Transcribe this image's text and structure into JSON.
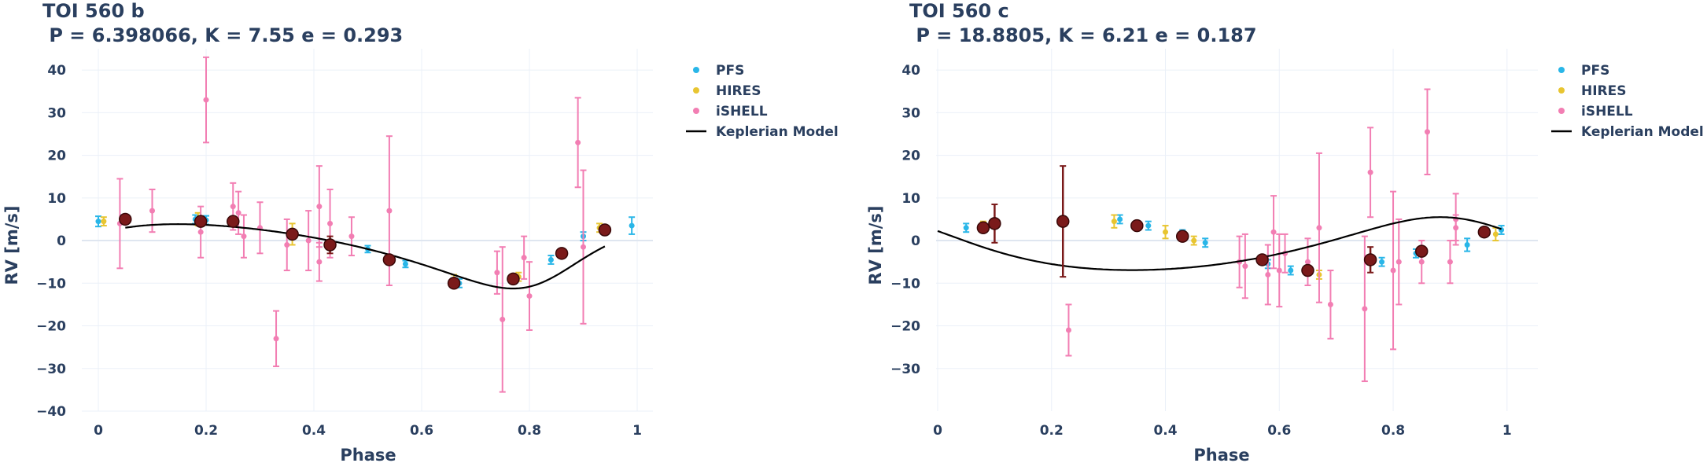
{
  "chart_data": [
    {
      "type": "scatter",
      "title": "TOI 560 b",
      "subtitle": " P = 6.398066, K = 7.55 e = 0.293",
      "xlabel": "Phase",
      "ylabel": "RV [m/s]",
      "xlim": [
        0,
        1
      ],
      "ylim": [
        -40,
        45
      ],
      "xticks": [
        0,
        0.2,
        0.4,
        0.6,
        0.8,
        1
      ],
      "xticklabels": [
        "0",
        "0.2",
        "0.4",
        "0.6",
        "0.8",
        "1"
      ],
      "yticks": [
        -40,
        -30,
        -20,
        -10,
        0,
        10,
        20,
        30,
        40
      ],
      "yticklabels": [
        "−40",
        "−30",
        "−20",
        "−10",
        "0",
        "10",
        "20",
        "30",
        "40"
      ],
      "grid": true,
      "legend": [
        {
          "name": "PFS",
          "color": "#29b6e8",
          "kind": "marker"
        },
        {
          "name": "HIRES",
          "color": "#e8c531",
          "kind": "marker"
        },
        {
          "name": "iSHELL",
          "color": "#f27eb3",
          "kind": "marker"
        },
        {
          "name": "Keplerian Model",
          "color": "#000000",
          "kind": "line"
        }
      ],
      "model": {
        "K": 7.55,
        "e": 0.293,
        "w_deg": 220,
        "tp": 0.83,
        "offset": -2.0
      },
      "series": [
        {
          "name": "PFS",
          "color": "#29b6e8",
          "points": [
            [
              0.0,
              4.5,
              1.2
            ],
            [
              0.045,
              5.0,
              1.0
            ],
            [
              0.18,
              5.0,
              1.0
            ],
            [
              0.2,
              4.8,
              1.0
            ],
            [
              0.5,
              -2.0,
              0.8
            ],
            [
              0.57,
              -5.5,
              0.8
            ],
            [
              0.67,
              -10.0,
              1.0
            ],
            [
              0.84,
              -4.5,
              1.0
            ],
            [
              0.9,
              1.0,
              1.0
            ],
            [
              0.99,
              3.5,
              2.0
            ]
          ]
        },
        {
          "name": "HIRES",
          "color": "#e8c531",
          "points": [
            [
              0.01,
              4.5,
              1.0
            ],
            [
              0.185,
              5.0,
              1.5
            ],
            [
              0.36,
              1.5,
              2.5
            ],
            [
              0.66,
              -9.5,
              1.5
            ],
            [
              0.78,
              -8.5,
              1.0
            ],
            [
              0.93,
              3.0,
              1.0
            ]
          ]
        },
        {
          "name": "iSHELL",
          "color": "#f27eb3",
          "points": [
            [
              0.04,
              4.0,
              10.5
            ],
            [
              0.1,
              7.0,
              5.0
            ],
            [
              0.19,
              2.0,
              6.0
            ],
            [
              0.2,
              33.0,
              10.0
            ],
            [
              0.25,
              8.0,
              5.5
            ],
            [
              0.26,
              6.5,
              5.0
            ],
            [
              0.27,
              1.0,
              5.0
            ],
            [
              0.3,
              3.0,
              6.0
            ],
            [
              0.33,
              -23.0,
              6.5
            ],
            [
              0.35,
              -1.0,
              6.0
            ],
            [
              0.39,
              0.0,
              7.0
            ],
            [
              0.41,
              -5.0,
              4.5
            ],
            [
              0.41,
              8.0,
              9.5
            ],
            [
              0.43,
              4.0,
              8.0
            ],
            [
              0.47,
              1.0,
              4.5
            ],
            [
              0.54,
              7.0,
              17.5
            ],
            [
              0.74,
              -7.5,
              5.0
            ],
            [
              0.75,
              -18.5,
              17.0
            ],
            [
              0.79,
              -4.0,
              5.0
            ],
            [
              0.8,
              -13.0,
              8.0
            ],
            [
              0.89,
              23.0,
              10.5
            ],
            [
              0.9,
              -1.5,
              18.0
            ]
          ]
        },
        {
          "name": "Binned",
          "color": "#7a1a1a",
          "points": [
            [
              0.05,
              5.0,
              0.5
            ],
            [
              0.19,
              4.5,
              0.5
            ],
            [
              0.25,
              4.5,
              0.5
            ],
            [
              0.36,
              1.5,
              0.5
            ],
            [
              0.43,
              -1.0,
              2.0
            ],
            [
              0.54,
              -4.5,
              0.5
            ],
            [
              0.66,
              -10.0,
              0.5
            ],
            [
              0.77,
              -9.0,
              0.5
            ],
            [
              0.86,
              -3.0,
              0.5
            ],
            [
              0.94,
              2.5,
              0.5
            ]
          ]
        }
      ]
    },
    {
      "type": "scatter",
      "title": "TOI 560 c",
      "subtitle": " P = 18.8805, K = 6.21 e = 0.187",
      "xlabel": "Phase",
      "ylabel": "RV [m/s]",
      "xlim": [
        0,
        1.05
      ],
      "ylim": [
        -40,
        45
      ],
      "xticks": [
        0,
        0.2,
        0.4,
        0.6,
        0.8,
        1
      ],
      "xticklabels": [
        "0",
        "0.2",
        "0.4",
        "0.6",
        "0.8",
        "1"
      ],
      "yticks": [
        -30,
        -20,
        -10,
        0,
        10,
        20,
        30,
        40
      ],
      "yticklabels": [
        "−30",
        "−20",
        "−10",
        "0",
        "10",
        "20",
        "30",
        "40"
      ],
      "grid": true,
      "legend": [
        {
          "name": "PFS",
          "color": "#29b6e8",
          "kind": "marker"
        },
        {
          "name": "HIRES",
          "color": "#e8c531",
          "kind": "marker"
        },
        {
          "name": "iSHELL",
          "color": "#f27eb3",
          "kind": "marker"
        },
        {
          "name": "Keplerian Model",
          "color": "#000000",
          "kind": "line"
        }
      ],
      "model": {
        "K": 6.21,
        "e": 0.187,
        "w_deg": 20,
        "tp": 0.92,
        "offset": -1.8
      },
      "series": [
        {
          "name": "PFS",
          "color": "#29b6e8",
          "points": [
            [
              0.05,
              3.0,
              1.0
            ],
            [
              0.32,
              5.0,
              1.0
            ],
            [
              0.37,
              3.5,
              1.0
            ],
            [
              0.43,
              1.5,
              1.0
            ],
            [
              0.47,
              -0.5,
              1.0
            ],
            [
              0.58,
              -5.5,
              1.0
            ],
            [
              0.62,
              -7.0,
              1.0
            ],
            [
              0.78,
              -5.0,
              1.0
            ],
            [
              0.84,
              -3.0,
              1.0
            ],
            [
              0.93,
              -1.0,
              1.5
            ],
            [
              0.99,
              2.5,
              1.0
            ]
          ]
        },
        {
          "name": "HIRES",
          "color": "#e8c531",
          "points": [
            [
              0.08,
              3.5,
              1.0
            ],
            [
              0.31,
              4.5,
              1.5
            ],
            [
              0.4,
              2.0,
              1.5
            ],
            [
              0.45,
              0.0,
              1.0
            ],
            [
              0.57,
              -4.5,
              1.0
            ],
            [
              0.67,
              -8.0,
              1.0
            ],
            [
              0.98,
              1.5,
              1.5
            ]
          ]
        },
        {
          "name": "iSHELL",
          "color": "#f27eb3",
          "points": [
            [
              0.23,
              -21.0,
              6.0
            ],
            [
              0.53,
              -5.0,
              6.0
            ],
            [
              0.54,
              -6.0,
              7.5
            ],
            [
              0.58,
              -8.0,
              7.0
            ],
            [
              0.59,
              2.0,
              8.5
            ],
            [
              0.6,
              -7.0,
              8.5
            ],
            [
              0.61,
              -3.0,
              4.5
            ],
            [
              0.65,
              -5.0,
              5.5
            ],
            [
              0.67,
              3.0,
              17.5
            ],
            [
              0.69,
              -15.0,
              8.0
            ],
            [
              0.75,
              -16.0,
              17.0
            ],
            [
              0.76,
              16.0,
              10.5
            ],
            [
              0.8,
              -7.0,
              18.5
            ],
            [
              0.81,
              -5.0,
              10.0
            ],
            [
              0.85,
              -5.0,
              5.0
            ],
            [
              0.86,
              25.5,
              10.0
            ],
            [
              0.9,
              -5.0,
              5.0
            ],
            [
              0.91,
              5.0,
              6.0
            ],
            [
              0.91,
              3.0,
              3.0
            ]
          ]
        },
        {
          "name": "Binned",
          "color": "#7a1a1a",
          "points": [
            [
              0.08,
              3.0,
              0.8
            ],
            [
              0.1,
              4.0,
              4.5
            ],
            [
              0.22,
              4.5,
              13.0
            ],
            [
              0.35,
              3.5,
              0.5
            ],
            [
              0.43,
              1.0,
              0.5
            ],
            [
              0.57,
              -4.5,
              0.5
            ],
            [
              0.65,
              -7.0,
              0.5
            ],
            [
              0.76,
              -4.5,
              3.0
            ],
            [
              0.85,
              -2.5,
              0.5
            ],
            [
              0.96,
              2.0,
              0.5
            ]
          ]
        }
      ]
    }
  ]
}
